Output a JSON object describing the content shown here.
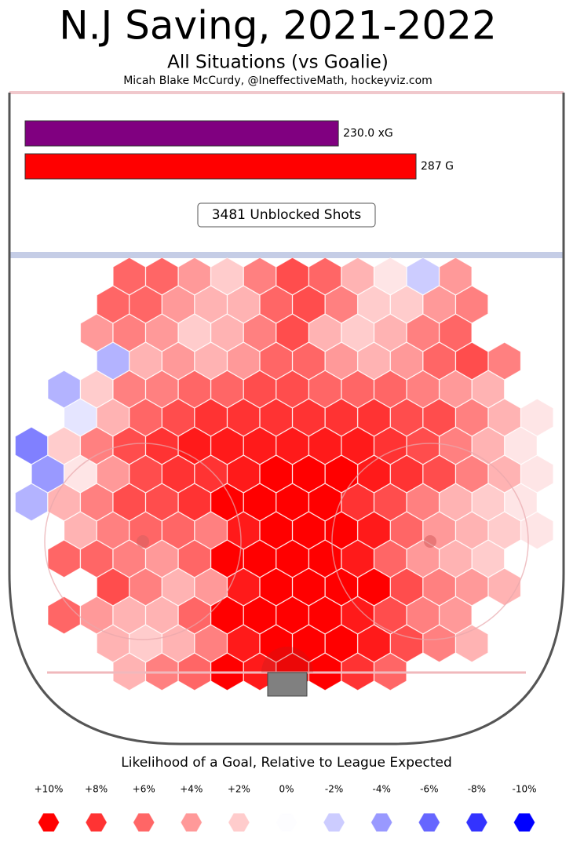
{
  "chart_data": {
    "type": "hexbin",
    "title": "N.J Saving, 2021-2022",
    "subtitle": "All Situations (vs Goalie)",
    "credit": "Micah Blake McCurdy, @IneffectiveMath, hockeyviz.com",
    "bars": [
      {
        "value": 230.0,
        "value_label": "230.0 xG",
        "color": "#800080"
      },
      {
        "value": 287,
        "value_label": "287 G",
        "color": "#ff0000"
      }
    ],
    "shots_label": "3481 Unblocked Shots",
    "hexbin": [
      [
        null,
        null,
        null,
        6,
        6,
        4,
        2,
        5,
        7,
        6,
        3,
        1,
        -2,
        4,
        null,
        null
      ],
      [
        null,
        null,
        6,
        6,
        4,
        3,
        3,
        6,
        7,
        5,
        2,
        2,
        4,
        5,
        null,
        null
      ],
      [
        null,
        null,
        4,
        5,
        4,
        2,
        3,
        5,
        7,
        3,
        2,
        3,
        5,
        6,
        null,
        null
      ],
      [
        null,
        null,
        -3,
        3,
        4,
        3,
        4,
        6,
        6,
        4,
        3,
        4,
        6,
        7,
        5,
        null
      ],
      [
        null,
        -3,
        2,
        5,
        5,
        6,
        6,
        7,
        7,
        6,
        6,
        6,
        5,
        4,
        3,
        null
      ],
      [
        null,
        -1,
        3,
        6,
        7,
        8,
        8,
        8,
        8,
        8,
        8,
        7,
        7,
        5,
        3,
        1
      ],
      [
        -5,
        2,
        5,
        7,
        8,
        9,
        9,
        9,
        9,
        9,
        9,
        8,
        7,
        5,
        3,
        1
      ],
      [
        -4,
        1,
        4,
        7,
        8,
        8,
        9,
        10,
        10,
        10,
        9,
        8,
        7,
        5,
        3,
        1
      ],
      [
        -3,
        3,
        5,
        7,
        7,
        8,
        10,
        10,
        10,
        10,
        8,
        7,
        5,
        3,
        2,
        1
      ],
      [
        null,
        3,
        5,
        6,
        6,
        5,
        9,
        10,
        10,
        10,
        9,
        6,
        4,
        3,
        2,
        1
      ],
      [
        null,
        6,
        6,
        5,
        4,
        6,
        10,
        10,
        10,
        10,
        9,
        6,
        4,
        3,
        2,
        null
      ],
      [
        null,
        null,
        7,
        5,
        3,
        4,
        9,
        10,
        10,
        10,
        10,
        7,
        5,
        4,
        3,
        null
      ],
      [
        null,
        6,
        4,
        3,
        3,
        6,
        10,
        10,
        10,
        10,
        9,
        7,
        5,
        4,
        null,
        null
      ],
      [
        null,
        null,
        3,
        2,
        3,
        5,
        9,
        10,
        10,
        10,
        9,
        7,
        5,
        3,
        null,
        null
      ],
      [
        null,
        null,
        null,
        3,
        5,
        6,
        10,
        9,
        10,
        10,
        8,
        6,
        null,
        null,
        null,
        null
      ]
    ],
    "legend": {
      "title": "Likelihood of a Goal, Relative to League Expected",
      "items": [
        {
          "value": 10,
          "label": "+10%",
          "color": "#ff0000"
        },
        {
          "value": 8,
          "label": "+8%",
          "color": "#ff3333"
        },
        {
          "value": 6,
          "label": "+6%",
          "color": "#ff6666"
        },
        {
          "value": 4,
          "label": "+4%",
          "color": "#ff9999"
        },
        {
          "value": 2,
          "label": "+2%",
          "color": "#ffcccc"
        },
        {
          "value": 0,
          "label": "0%",
          "color": "#fdfdff"
        },
        {
          "value": -2,
          "label": "-2%",
          "color": "#ccccff"
        },
        {
          "value": -4,
          "label": "-4%",
          "color": "#9999ff"
        },
        {
          "value": -6,
          "label": "-6%",
          "color": "#6666ff"
        },
        {
          "value": -8,
          "label": "-8%",
          "color": "#3333ff"
        },
        {
          "value": -10,
          "label": "-10%",
          "color": "#0000ff"
        }
      ]
    }
  }
}
